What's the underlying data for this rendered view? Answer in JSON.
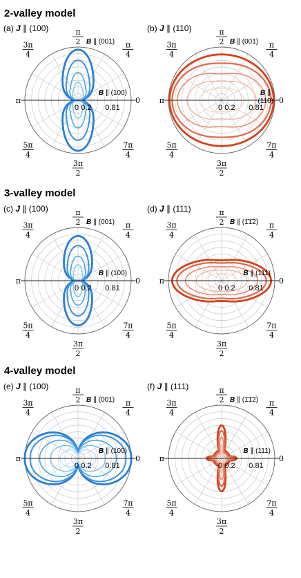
{
  "sections": [
    {
      "title": "2-valley model"
    },
    {
      "title": "3-valley model"
    },
    {
      "title": "4-valley model"
    }
  ],
  "colors": {
    "blue": "#2a7fd4",
    "red": "#d4421a",
    "grid": "#c8c8c8"
  },
  "angle_labels": [
    "0",
    "π/4",
    "π/2",
    "3π/4",
    "π",
    "5π/4",
    "3π/2",
    "7π/4"
  ],
  "radial_ticks": [
    "0.2",
    "0.81"
  ],
  "chart_data": [
    {
      "type": "polar",
      "panel": "(a)",
      "title_prefix": "(a)",
      "title_J": "J",
      "title_dir": "(100)",
      "b_top": "(001)",
      "b_right": "(100)",
      "b_right_sub": "",
      "scheme": "blue",
      "curves": [
        {
          "shape": "lobe_v",
          "rmax": 0.93,
          "width": 0.45,
          "lw": 2.8,
          "shade": 0
        },
        {
          "shape": "lobe_v",
          "rmax": 0.73,
          "width": 0.4,
          "lw": 2.0,
          "shade": 1
        },
        {
          "shape": "lobe_v",
          "rmax": 0.5,
          "width": 0.35,
          "lw": 1.6,
          "shade": 2
        },
        {
          "shape": "lobe_v",
          "rmax": 0.32,
          "width": 0.32,
          "lw": 1.3,
          "shade": 3
        }
      ]
    },
    {
      "type": "polar",
      "panel": "(b)",
      "title_prefix": "(b)",
      "title_J": "J",
      "title_dir": "(110)",
      "b_top": "(001)",
      "b_right": "",
      "b_right_sub": "(110)",
      "scheme": "red",
      "curves": [
        {
          "shape": "peanut_h",
          "a": 0.98,
          "b": 0.86,
          "dip": 0.0,
          "lw": 2.8,
          "shade": 0
        },
        {
          "shape": "peanut_h",
          "a": 0.93,
          "b": 0.74,
          "dip": 0.06,
          "lw": 2.2,
          "shade": 1
        },
        {
          "shape": "peanut_h",
          "a": 0.83,
          "b": 0.57,
          "dip": 0.13,
          "lw": 1.6,
          "shade": 2
        },
        {
          "shape": "peanut_h",
          "a": 0.65,
          "b": 0.4,
          "dip": 0.13,
          "lw": 1.3,
          "shade": 3
        },
        {
          "shape": "peanut_h",
          "a": 0.42,
          "b": 0.24,
          "dip": 0.1,
          "lw": 1.1,
          "shade": 4
        }
      ]
    },
    {
      "type": "polar",
      "panel": "(c)",
      "title_prefix": "(c)",
      "title_J": "J",
      "title_dir": "(100)",
      "b_top": "(001)",
      "b_right": "(100)",
      "b_right_sub": "",
      "scheme": "blue",
      "curves": [
        {
          "shape": "lobe_v",
          "rmax": 0.82,
          "width": 0.48,
          "lw": 2.8,
          "shade": 0
        },
        {
          "shape": "lobe_v",
          "rmax": 0.64,
          "width": 0.44,
          "lw": 2.0,
          "shade": 1
        },
        {
          "shape": "lobe_v",
          "rmax": 0.44,
          "width": 0.4,
          "lw": 1.6,
          "shade": 2
        },
        {
          "shape": "lobe_v",
          "rmax": 0.28,
          "width": 0.36,
          "lw": 1.3,
          "shade": 3
        }
      ]
    },
    {
      "type": "polar",
      "panel": "(d)",
      "title_prefix": "(d)",
      "title_J": "J",
      "title_dir": "(111)",
      "b_top": "(1̄1̄2)",
      "b_right": "(111)",
      "b_right_sub": "",
      "scheme": "red",
      "curves": [
        {
          "shape": "peanut_h",
          "a": 0.93,
          "b": 0.42,
          "dip": 0.09,
          "lw": 2.8,
          "shade": 0
        },
        {
          "shape": "peanut_h",
          "a": 0.84,
          "b": 0.36,
          "dip": 0.08,
          "lw": 2.2,
          "shade": 1
        },
        {
          "shape": "peanut_h",
          "a": 0.68,
          "b": 0.28,
          "dip": 0.07,
          "lw": 1.6,
          "shade": 2
        },
        {
          "shape": "peanut_h",
          "a": 0.48,
          "b": 0.21,
          "dip": 0.05,
          "lw": 1.3,
          "shade": 3
        },
        {
          "shape": "peanut_h",
          "a": 0.3,
          "b": 0.14,
          "dip": 0.04,
          "lw": 1.1,
          "shade": 4
        }
      ]
    },
    {
      "type": "polar",
      "panel": "(e)",
      "title_prefix": "(e)",
      "title_J": "J",
      "title_dir": "(100)",
      "b_top": "(001)",
      "b_right": "(100)",
      "b_right_sub": "",
      "scheme": "blue",
      "curves": [
        {
          "shape": "lobe_h",
          "rmax": 0.98,
          "width": 0.6,
          "lw": 2.8,
          "shade": 0
        },
        {
          "shape": "lobe_h",
          "rmax": 0.88,
          "width": 0.56,
          "lw": 2.0,
          "shade": 1
        },
        {
          "shape": "lobe_h",
          "rmax": 0.7,
          "width": 0.5,
          "lw": 1.6,
          "shade": 2
        },
        {
          "shape": "lobe_h",
          "rmax": 0.5,
          "width": 0.45,
          "lw": 1.3,
          "shade": 3
        },
        {
          "shape": "lobe_h",
          "rmax": 0.32,
          "width": 0.4,
          "lw": 1.1,
          "shade": 4
        }
      ]
    },
    {
      "type": "polar",
      "panel": "(f)",
      "title_prefix": "(f)",
      "title_J": "J",
      "title_dir": "(111)",
      "b_top": "(1̄1̄2)",
      "b_right": "(111)",
      "b_right_sub": "",
      "scheme": "red",
      "curves": [
        {
          "shape": "cross",
          "rv": 0.62,
          "rh": 0.28,
          "w": 0.2,
          "lw": 2.8,
          "shade": 0
        },
        {
          "shape": "cross",
          "rv": 0.52,
          "rh": 0.24,
          "w": 0.18,
          "lw": 2.2,
          "shade": 1
        },
        {
          "shape": "cross",
          "rv": 0.4,
          "rh": 0.19,
          "w": 0.15,
          "lw": 1.6,
          "shade": 2
        },
        {
          "shape": "cross",
          "rv": 0.27,
          "rh": 0.13,
          "w": 0.12,
          "lw": 1.3,
          "shade": 3
        },
        {
          "shape": "cross",
          "rv": 0.16,
          "rh": 0.09,
          "w": 0.09,
          "lw": 1.1,
          "shade": 4
        }
      ]
    }
  ]
}
